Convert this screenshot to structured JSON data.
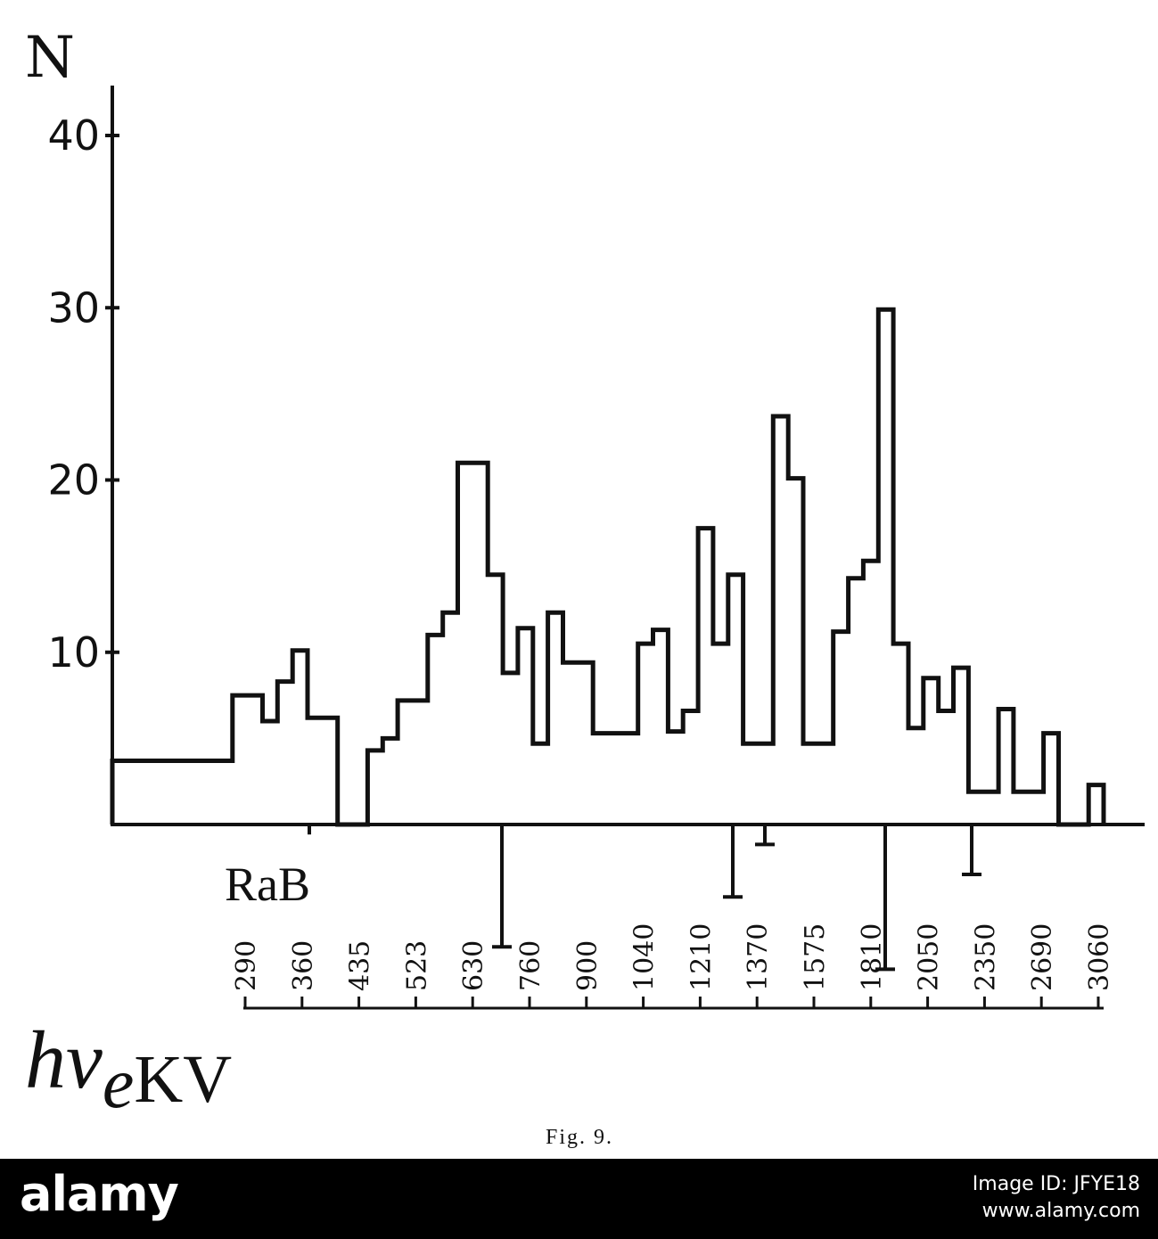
{
  "chart_data": {
    "type": "histogram",
    "xlabel_main": "hv",
    "xlabel_sub": "e",
    "xlabel_unit": "KV",
    "ylabel": "N",
    "ylim": [
      0,
      40
    ],
    "yticks": [
      10,
      20,
      30,
      40
    ],
    "x_ticks": [
      "290",
      "360",
      "435",
      "523",
      "630",
      "760",
      "900",
      "1040",
      "1210",
      "1370",
      "1575",
      "1810",
      "2050",
      "2350",
      "2690",
      "3060"
    ],
    "values": [
      3.7,
      3.7,
      3.7,
      3.7,
      3.7,
      3.7,
      3.7,
      3.7,
      7.5,
      7.5,
      6.0,
      8.3,
      10.1,
      6.2,
      6.2,
      0,
      0,
      4.3,
      5.0,
      7.2,
      7.2,
      11.0,
      12.3,
      21.0,
      21.0,
      14.5,
      8.8,
      11.4,
      4.7,
      12.3,
      9.4,
      9.4,
      5.3,
      5.3,
      5.3,
      10.5,
      11.3,
      5.4,
      6.6,
      17.2,
      10.5,
      14.5,
      4.7,
      4.7,
      23.7,
      20.1,
      4.7,
      4.7,
      11.2,
      14.3,
      15.3,
      29.9,
      10.5,
      5.6,
      8.5,
      6.6,
      9.1,
      1.9,
      1.9,
      6.7,
      1.9,
      1.9,
      5.3,
      0,
      0,
      2.3
    ],
    "markers": [
      {
        "label": "RaB",
        "value": 0.4
      },
      {
        "value": 4.9
      },
      {
        "value": 2.9
      },
      {
        "value": 0.8
      },
      {
        "value": 5.8
      },
      {
        "value": 2.0
      }
    ],
    "caption": "Fig. 9."
  },
  "footer": {
    "brand": "alamy",
    "image_id": "Image ID: JFYE18",
    "url": "www.alamy.com"
  },
  "colors": {
    "ink": "#111111",
    "footer_bg": "#000000",
    "footer_text": "#ffffff"
  }
}
